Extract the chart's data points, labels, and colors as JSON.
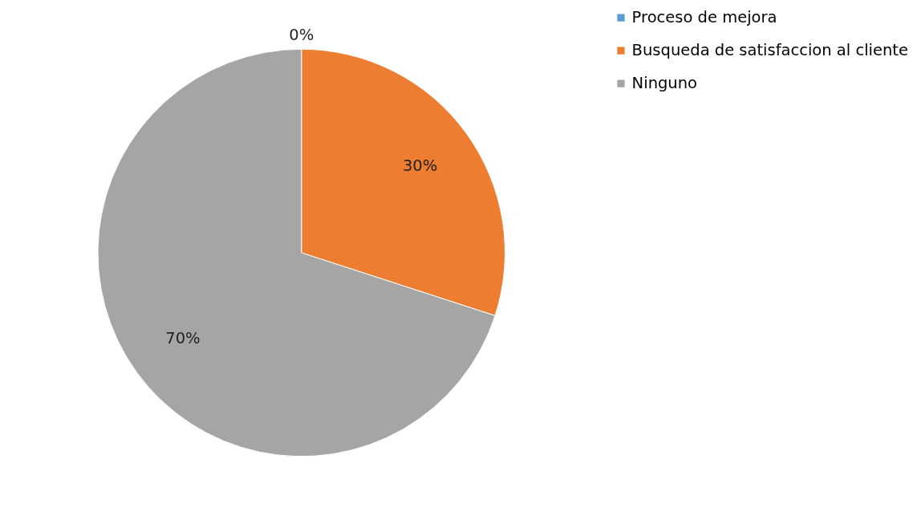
{
  "chart_data": {
    "type": "pie",
    "categories": [
      "Proceso de mejora",
      "Busqueda de satisfaccion al cliente",
      "Ninguno"
    ],
    "values": [
      0,
      30,
      70
    ],
    "colors": [
      "#5b9bd5",
      "#ed7d31",
      "#a5a5a5"
    ],
    "value_labels": [
      "0%",
      "30%",
      "70%"
    ],
    "legend": "right"
  }
}
